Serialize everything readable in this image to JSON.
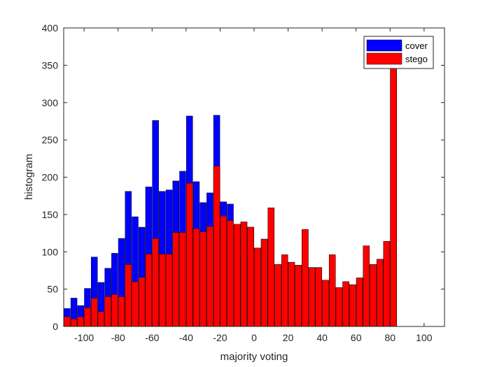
{
  "chart_data": {
    "type": "bar",
    "xlabel": "majority voting",
    "ylabel": "histogram",
    "xlim": [
      -112,
      112
    ],
    "ylim": [
      0,
      400
    ],
    "xticks": [
      -100,
      -80,
      -60,
      -40,
      -20,
      0,
      20,
      40,
      60,
      80,
      100
    ],
    "yticks": [
      0,
      50,
      100,
      150,
      200,
      250,
      300,
      350,
      400
    ],
    "bar_width": 3.7,
    "grid": false,
    "legend_position": "top-right",
    "x": [
      -110,
      -106,
      -102,
      -98,
      -94,
      -90,
      -86,
      -82,
      -78,
      -74,
      -70,
      -66,
      -62,
      -58,
      -54,
      -50,
      -46,
      -42,
      -38,
      -34,
      -30,
      -26,
      -22,
      -18,
      -14,
      -10,
      -6,
      -2,
      2,
      6,
      10,
      14,
      18,
      22,
      26,
      30,
      34,
      38,
      42,
      46,
      50,
      54,
      58,
      62,
      66,
      70,
      74,
      78,
      82,
      86,
      90,
      94,
      98,
      102,
      106,
      110
    ],
    "series": [
      {
        "name": "cover",
        "color": "#0000ff",
        "values": [
          24,
          38,
          28,
          51,
          93,
          59,
          78,
          98,
          118,
          181,
          147,
          133,
          187,
          276,
          181,
          183,
          195,
          208,
          282,
          194,
          166,
          179,
          283,
          167,
          164,
          137,
          140,
          133,
          105,
          117,
          159,
          83,
          96,
          86,
          82,
          130,
          79,
          79,
          62,
          96,
          52,
          60,
          56,
          65,
          108,
          83,
          90,
          114,
          366,
          0,
          0,
          0,
          0,
          0,
          0,
          0
        ]
      },
      {
        "name": "stego",
        "color": "#ff0000",
        "values": [
          13,
          10,
          13,
          25,
          38,
          20,
          40,
          43,
          40,
          83,
          60,
          66,
          97,
          118,
          97,
          97,
          126,
          126,
          192,
          131,
          127,
          134,
          215,
          148,
          142,
          137,
          140,
          133,
          105,
          117,
          159,
          83,
          96,
          86,
          82,
          130,
          79,
          79,
          62,
          96,
          52,
          60,
          56,
          65,
          108,
          83,
          90,
          114,
          366,
          0,
          0,
          0,
          0,
          0,
          0,
          0
        ]
      }
    ]
  }
}
